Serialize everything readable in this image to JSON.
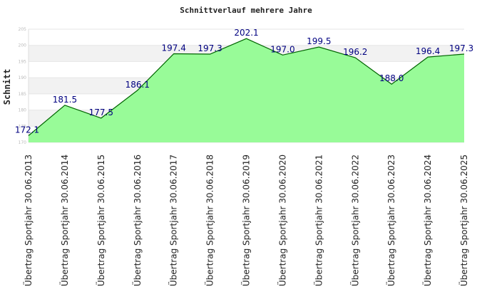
{
  "chart_data": {
    "type": "area",
    "title": "Schnittverlauf mehrere Jahre",
    "ylabel": "Schnitt",
    "xlabel": "",
    "ylim": [
      170,
      205
    ],
    "yticks": [
      170,
      175,
      180,
      185,
      190,
      195,
      200,
      205
    ],
    "grid": "alternating horizontal bands",
    "categories": [
      "Übertrag Sportjahr 30.06.2013",
      "Übertrag Sportjahr 30.06.2014",
      "Übertrag Sportjahr 30.06.2015",
      "Übertrag Sportjahr 30.06.2016",
      "Übertrag Sportjahr 30.06.2017",
      "Übertrag Sportjahr 30.06.2018",
      "Übertrag Sportjahr 30.06.2019",
      "Übertrag Sportjahr 30.06.2020",
      "Übertrag Sportjahr 30.06.2021",
      "Übertrag Sportjahr 30.06.2022",
      "Übertrag Sportjahr 30.06.2023",
      "Übertrag Sportjahr 30.06.2024",
      "Übertrag Sportjahr 30.06.2025"
    ],
    "values": [
      172.1,
      181.5,
      177.5,
      186.1,
      197.4,
      197.3,
      202.1,
      197.0,
      199.5,
      196.2,
      188.0,
      196.4,
      197.3
    ],
    "labels": [
      "172.1",
      "181.5",
      "177.5",
      "186.1",
      "197.4",
      "197.3",
      "202.1",
      "197.0",
      "199.5",
      "196.2",
      "188.0",
      "196.4",
      "197.3"
    ],
    "colors": {
      "fill": "#98fb98",
      "line": "#006400",
      "band": "#f2f2f2",
      "label": "#000080"
    }
  }
}
